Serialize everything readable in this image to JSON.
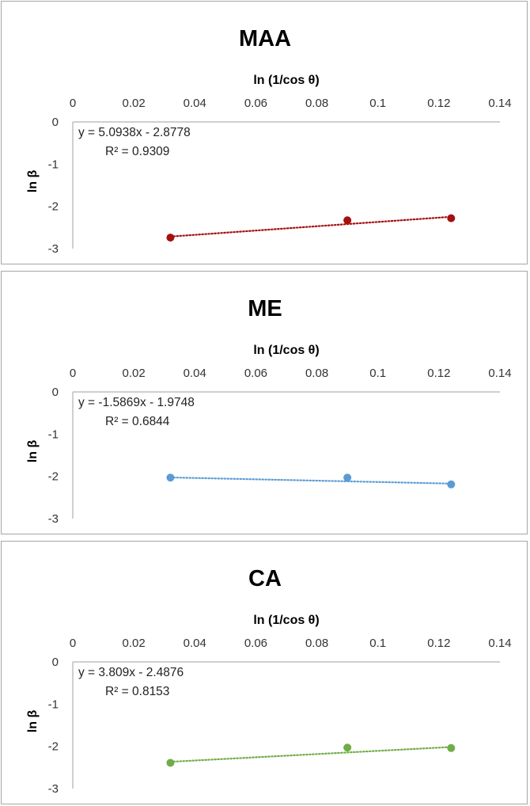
{
  "chart_data": [
    {
      "type": "scatter",
      "title": "MAA",
      "xlabel": "ln (1/cos θ)",
      "ylabel": "ln β",
      "xlim": [
        0,
        0.14
      ],
      "ylim": [
        -3,
        0
      ],
      "x_ticks": [
        "0",
        "0.02",
        "0.04",
        "0.06",
        "0.08",
        "0.1",
        "0.12",
        "0.14"
      ],
      "y_ticks": [
        "0",
        "-1",
        "-2",
        "-3"
      ],
      "x": [
        0.032,
        0.09,
        0.124
      ],
      "y": [
        -2.74,
        -2.33,
        -2.28
      ],
      "trendline": {
        "slope": 5.0938,
        "intercept": -2.8778,
        "style": "dotted"
      },
      "equation": "y = 5.0938x - 2.8778",
      "r_squared": "R² = 0.9309",
      "color": "#a50f0f",
      "x_axis_position": "top"
    },
    {
      "type": "scatter",
      "title": "ME",
      "xlabel": "ln (1/cos θ)",
      "ylabel": "ln β",
      "xlim": [
        0,
        0.14
      ],
      "ylim": [
        -3,
        0
      ],
      "x_ticks": [
        "0",
        "0.02",
        "0.04",
        "0.06",
        "0.08",
        "0.1",
        "0.12",
        "0.14"
      ],
      "y_ticks": [
        "0",
        "-1",
        "-2",
        "-3"
      ],
      "x": [
        0.032,
        0.09,
        0.124
      ],
      "y": [
        -2.03,
        -2.03,
        -2.19
      ],
      "trendline": {
        "slope": -1.5869,
        "intercept": -1.9748,
        "style": "dotted"
      },
      "equation": "y = -1.5869x - 1.9748",
      "r_squared": "R² = 0.6844",
      "color": "#5b9bd5",
      "x_axis_position": "top"
    },
    {
      "type": "scatter",
      "title": "CA",
      "xlabel": "ln (1/cos θ)",
      "ylabel": "ln β",
      "xlim": [
        0,
        0.14
      ],
      "ylim": [
        -3,
        0
      ],
      "x_ticks": [
        "0",
        "0.02",
        "0.04",
        "0.06",
        "0.08",
        "0.1",
        "0.12",
        "0.14"
      ],
      "y_ticks": [
        "0",
        "-1",
        "-2",
        "-3"
      ],
      "x": [
        0.032,
        0.09,
        0.124
      ],
      "y": [
        -2.39,
        -2.03,
        -2.04
      ],
      "trendline": {
        "slope": 3.809,
        "intercept": -2.4876,
        "style": "dotted"
      },
      "equation": "y = 3.809x - 2.4876",
      "r_squared": "R² = 0.8153",
      "color": "#70ad47",
      "x_axis_position": "top"
    }
  ]
}
